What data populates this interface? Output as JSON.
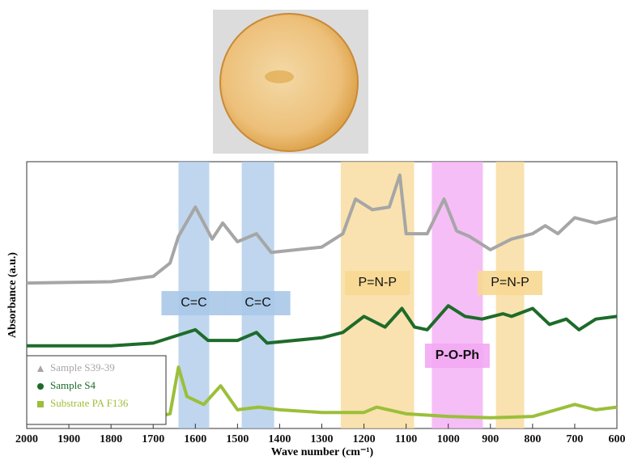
{
  "chart_data": {
    "type": "line",
    "xlabel": "Wave number (cm⁻¹)",
    "ylabel": "Absorbance (a.u.)",
    "xlim": [
      2000,
      600
    ],
    "ylim": [
      0,
      100
    ],
    "xticks": [
      2000,
      1900,
      1800,
      1700,
      1600,
      1500,
      1400,
      1300,
      1200,
      1100,
      1000,
      900,
      800,
      700,
      600
    ],
    "regions": [
      {
        "from": 1640,
        "to": 1567,
        "label": "C=C",
        "color": "#a9c8e8"
      },
      {
        "from": 1490,
        "to": 1413,
        "label": "C=C",
        "color": "#a9c8e8"
      },
      {
        "from": 1255,
        "to": 1081,
        "label": "P=N-P",
        "color": "#f7d894"
      },
      {
        "from": 1039,
        "to": 918,
        "label": "P-O-Ph",
        "color": "#f3a8f3"
      },
      {
        "from": 887,
        "to": 820,
        "label": "P=N-P",
        "color": "#f7d894"
      }
    ],
    "series": [
      {
        "name": "Sample S39-39",
        "color": "#a6a6a6",
        "marker": "triangle",
        "x": [
          2000,
          1800,
          1700,
          1660,
          1640,
          1600,
          1560,
          1535,
          1500,
          1455,
          1420,
          1300,
          1250,
          1220,
          1180,
          1140,
          1115,
          1100,
          1080,
          1050,
          1010,
          980,
          950,
          900,
          850,
          800,
          770,
          740,
          700,
          650,
          600
        ],
        "values": [
          54.5,
          55,
          57,
          62,
          72,
          83,
          71,
          77,
          70,
          73,
          66,
          68,
          73,
          86,
          82,
          83,
          95,
          73,
          73,
          73,
          86,
          74,
          72,
          67,
          71,
          73,
          76,
          73,
          79,
          77,
          79
        ]
      },
      {
        "name": "Sample S4",
        "color": "#1e6b2a",
        "marker": "circle",
        "x": [
          2000,
          1800,
          1700,
          1600,
          1570,
          1500,
          1455,
          1430,
          1300,
          1250,
          1200,
          1150,
          1110,
          1080,
          1050,
          1000,
          960,
          920,
          870,
          850,
          800,
          760,
          720,
          690,
          650,
          600
        ],
        "values": [
          31,
          31,
          32,
          37,
          33,
          33,
          36,
          32,
          34,
          36,
          42,
          38,
          45,
          38,
          37,
          46,
          42,
          41,
          43,
          42,
          45,
          39,
          41,
          37,
          41,
          42
        ]
      },
      {
        "name": "Substrate PA F136",
        "color": "#9bbf3a",
        "marker": "square",
        "x": [
          2000,
          1800,
          1700,
          1660,
          1640,
          1620,
          1580,
          1540,
          1500,
          1450,
          1400,
          1300,
          1200,
          1170,
          1100,
          1000,
          900,
          800,
          700,
          650,
          600
        ],
        "values": [
          3,
          3,
          4,
          5.5,
          23,
          12,
          9,
          16,
          7,
          8,
          7,
          6,
          6,
          8,
          5.5,
          4.5,
          4,
          4.5,
          9,
          7,
          8
        ]
      }
    ]
  }
}
